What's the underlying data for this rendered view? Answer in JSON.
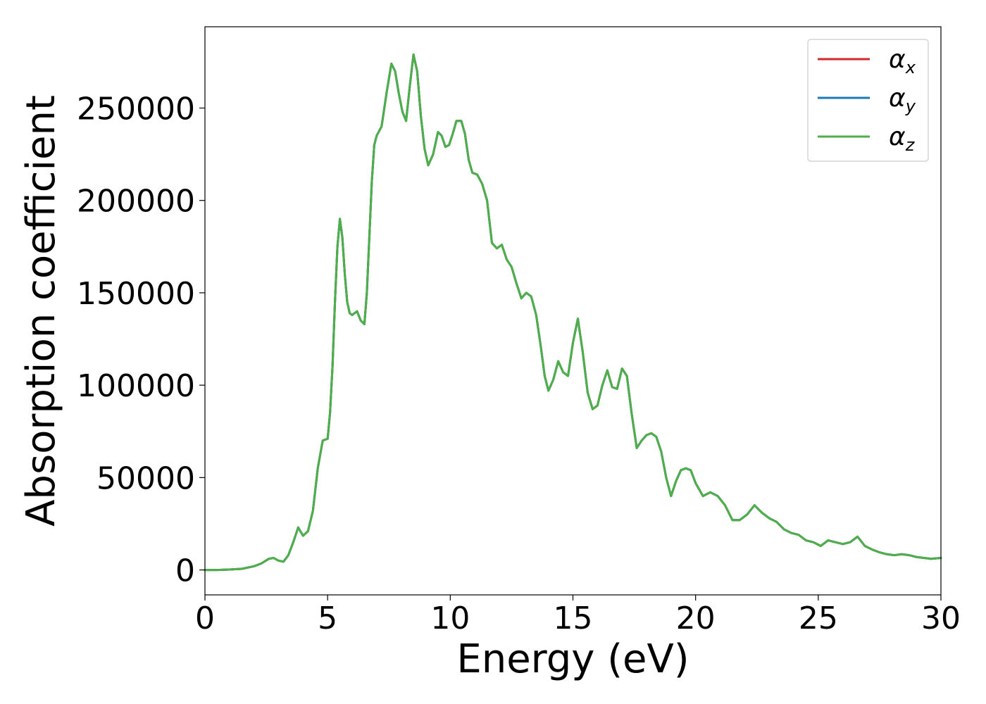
{
  "chart_data": {
    "type": "line",
    "xlabel": "Energy (eV)",
    "ylabel": "Absorption coefficient",
    "xlim": [
      0,
      30
    ],
    "ylim": [
      -13500,
      294000
    ],
    "xticks": [
      0,
      5,
      10,
      15,
      20,
      25,
      30
    ],
    "xtick_labels": [
      "0",
      "5",
      "10",
      "15",
      "20",
      "25",
      "30"
    ],
    "yticks": [
      0,
      50000,
      100000,
      150000,
      200000,
      250000
    ],
    "ytick_labels": [
      "0",
      "50000",
      "100000",
      "150000",
      "200000",
      "250000"
    ],
    "grid": false,
    "legend_position": "top-right",
    "x": [
      0,
      0.5,
      1.0,
      1.5,
      2.0,
      2.3,
      2.6,
      2.8,
      3.0,
      3.2,
      3.4,
      3.6,
      3.8,
      4.0,
      4.2,
      4.4,
      4.6,
      4.8,
      5.0,
      5.1,
      5.2,
      5.3,
      5.4,
      5.5,
      5.6,
      5.7,
      5.8,
      5.9,
      6.0,
      6.2,
      6.35,
      6.5,
      6.6,
      6.7,
      6.8,
      6.9,
      7.0,
      7.2,
      7.4,
      7.6,
      7.75,
      7.9,
      8.05,
      8.2,
      8.35,
      8.5,
      8.65,
      8.8,
      8.95,
      9.1,
      9.3,
      9.5,
      9.65,
      9.8,
      9.95,
      10.1,
      10.25,
      10.45,
      10.6,
      10.75,
      10.9,
      11.1,
      11.3,
      11.5,
      11.7,
      11.9,
      12.1,
      12.3,
      12.5,
      12.7,
      12.9,
      13.1,
      13.3,
      13.5,
      13.7,
      13.85,
      14.0,
      14.2,
      14.4,
      14.6,
      14.8,
      15.0,
      15.2,
      15.4,
      15.6,
      15.8,
      16.0,
      16.2,
      16.4,
      16.6,
      16.8,
      17.0,
      17.2,
      17.4,
      17.6,
      17.8,
      18.0,
      18.2,
      18.4,
      18.6,
      18.8,
      19.0,
      19.2,
      19.4,
      19.6,
      19.8,
      20.0,
      20.3,
      20.6,
      20.9,
      21.2,
      21.5,
      21.8,
      22.1,
      22.4,
      22.7,
      23.0,
      23.3,
      23.6,
      23.9,
      24.2,
      24.5,
      24.8,
      25.1,
      25.4,
      25.7,
      26.0,
      26.3,
      26.6,
      26.9,
      27.2,
      27.5,
      27.8,
      28.1,
      28.4,
      28.7,
      29.0,
      29.3,
      29.6,
      30.0
    ],
    "series": [
      {
        "name": "α_x",
        "color": "#d62728",
        "values": [
          0,
          0,
          200,
          600,
          2000,
          3500,
          6000,
          6500,
          5000,
          4500,
          8000,
          15000,
          23000,
          18500,
          21000,
          32000,
          55000,
          70000,
          71000,
          85000,
          110000,
          145000,
          175000,
          190000,
          180000,
          160000,
          145000,
          139000,
          138000,
          140000,
          135000,
          133000,
          150000,
          180000,
          210000,
          230000,
          235000,
          240000,
          258000,
          274000,
          270000,
          258000,
          248000,
          243000,
          262000,
          279000,
          270000,
          246000,
          228000,
          219000,
          225000,
          237000,
          235000,
          229000,
          230000,
          236000,
          243000,
          243000,
          236000,
          222000,
          215000,
          214000,
          209000,
          200000,
          177000,
          174000,
          176000,
          168000,
          164000,
          155000,
          147000,
          150000,
          148000,
          138000,
          120000,
          105000,
          97000,
          103000,
          113000,
          107000,
          105000,
          123000,
          136000,
          118000,
          96000,
          87000,
          89000,
          100000,
          108000,
          99000,
          98000,
          109000,
          105000,
          84000,
          66000,
          70000,
          73000,
          74000,
          72000,
          64000,
          50000,
          40000,
          48000,
          54000,
          55000,
          54000,
          47000,
          40000,
          42000,
          40000,
          35000,
          27000,
          27000,
          30000,
          35000,
          31000,
          28000,
          26000,
          22000,
          20000,
          19000,
          16000,
          15000,
          13000,
          16000,
          15000,
          14000,
          15000,
          18000,
          13000,
          11000,
          9500,
          8500,
          8000,
          8500,
          8000,
          7000,
          6500,
          6000,
          6500
        ]
      },
      {
        "name": "α_y",
        "color": "#1f77b4",
        "values": [
          0,
          0,
          200,
          600,
          2000,
          3500,
          6000,
          6500,
          5000,
          4500,
          8000,
          15000,
          23000,
          18500,
          21000,
          32000,
          55000,
          70000,
          71000,
          85000,
          110000,
          145000,
          175000,
          190000,
          180000,
          160000,
          145000,
          139000,
          138000,
          140000,
          135000,
          133000,
          150000,
          180000,
          210000,
          230000,
          235000,
          240000,
          258000,
          274000,
          270000,
          258000,
          248000,
          243000,
          262000,
          279000,
          270000,
          246000,
          228000,
          219000,
          225000,
          237000,
          235000,
          229000,
          230000,
          236000,
          243000,
          243000,
          236000,
          222000,
          215000,
          214000,
          209000,
          200000,
          177000,
          174000,
          176000,
          168000,
          164000,
          155000,
          147000,
          150000,
          148000,
          138000,
          120000,
          105000,
          97000,
          103000,
          113000,
          107000,
          105000,
          123000,
          136000,
          118000,
          96000,
          87000,
          89000,
          100000,
          108000,
          99000,
          98000,
          109000,
          105000,
          84000,
          66000,
          70000,
          73000,
          74000,
          72000,
          64000,
          50000,
          40000,
          48000,
          54000,
          55000,
          54000,
          47000,
          40000,
          42000,
          40000,
          35000,
          27000,
          27000,
          30000,
          35000,
          31000,
          28000,
          26000,
          22000,
          20000,
          19000,
          16000,
          15000,
          13000,
          16000,
          15000,
          14000,
          15000,
          18000,
          13000,
          11000,
          9500,
          8500,
          8000,
          8500,
          8000,
          7000,
          6500,
          6000,
          6500
        ]
      },
      {
        "name": "α_z",
        "color": "#4daf4a",
        "values": [
          0,
          0,
          200,
          600,
          2000,
          3500,
          6000,
          6500,
          5000,
          4500,
          8000,
          15000,
          23000,
          18500,
          21000,
          32000,
          55000,
          70000,
          71000,
          85000,
          110000,
          145000,
          175000,
          190000,
          180000,
          160000,
          145000,
          139000,
          138000,
          140000,
          135000,
          133000,
          150000,
          180000,
          210000,
          230000,
          235000,
          240000,
          258000,
          274000,
          270000,
          258000,
          248000,
          243000,
          262000,
          279000,
          270000,
          246000,
          228000,
          219000,
          225000,
          237000,
          235000,
          229000,
          230000,
          236000,
          243000,
          243000,
          236000,
          222000,
          215000,
          214000,
          209000,
          200000,
          177000,
          174000,
          176000,
          168000,
          164000,
          155000,
          147000,
          150000,
          148000,
          138000,
          120000,
          105000,
          97000,
          103000,
          113000,
          107000,
          105000,
          123000,
          136000,
          118000,
          96000,
          87000,
          89000,
          100000,
          108000,
          99000,
          98000,
          109000,
          105000,
          84000,
          66000,
          70000,
          73000,
          74000,
          72000,
          64000,
          50000,
          40000,
          48000,
          54000,
          55000,
          54000,
          47000,
          40000,
          42000,
          40000,
          35000,
          27000,
          27000,
          30000,
          35000,
          31000,
          28000,
          26000,
          22000,
          20000,
          19000,
          16000,
          15000,
          13000,
          16000,
          15000,
          14000,
          15000,
          18000,
          13000,
          11000,
          9500,
          8500,
          8000,
          8500,
          8000,
          7000,
          6500,
          6000,
          6500
        ]
      }
    ],
    "legend": [
      {
        "symbol": "α",
        "sub": "x",
        "color": "#d62728"
      },
      {
        "symbol": "α",
        "sub": "y",
        "color": "#1f77b4"
      },
      {
        "symbol": "α",
        "sub": "z",
        "color": "#4daf4a"
      }
    ]
  }
}
